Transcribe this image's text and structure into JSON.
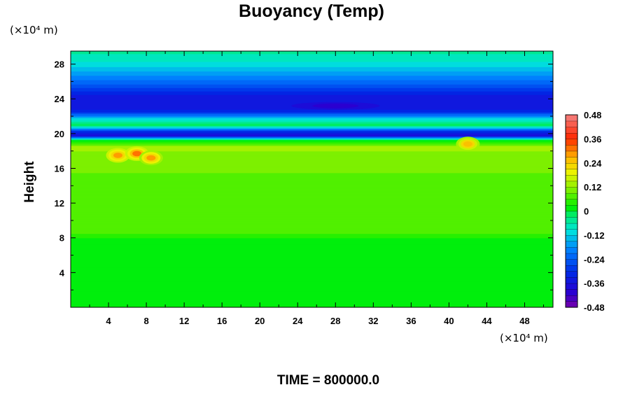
{
  "chart_data": {
    "type": "heatmap",
    "title": "Buoyancy (Temp)",
    "xlabel": "",
    "ylabel": "Height",
    "x_unit": "(×10⁴ m)",
    "y_unit": "(×10⁴ m)",
    "xlim": [
      0,
      51
    ],
    "ylim": [
      0,
      29.5
    ],
    "x_ticks": [
      4,
      8,
      12,
      16,
      20,
      24,
      28,
      32,
      36,
      40,
      44,
      48
    ],
    "y_ticks": [
      4,
      8,
      12,
      16,
      20,
      24,
      28
    ],
    "colorbar": {
      "min": -0.48,
      "max": 0.48,
      "labels": [
        "0.48",
        "0.36",
        "0.24",
        "0.12",
        "0",
        "-0.12",
        "-0.24",
        "-0.36",
        "-0.48"
      ],
      "label_values": [
        0.48,
        0.36,
        0.24,
        0.12,
        0,
        -0.12,
        -0.24,
        -0.36,
        -0.48
      ],
      "levels": 32
    },
    "profile_by_height": [
      {
        "z": 0,
        "v": 0.0
      },
      {
        "z": 7.5,
        "v": 0.0
      },
      {
        "z": 8.5,
        "v": 0.06
      },
      {
        "z": 11.0,
        "v": 0.07
      },
      {
        "z": 14.0,
        "v": 0.08
      },
      {
        "z": 17.0,
        "v": 0.1
      },
      {
        "z": 18.5,
        "v": 0.13
      },
      {
        "z": 19.3,
        "v": 0.0
      },
      {
        "z": 19.8,
        "v": -0.38
      },
      {
        "z": 20.3,
        "v": -0.3
      },
      {
        "z": 21.0,
        "v": 0.0
      },
      {
        "z": 21.7,
        "v": -0.1
      },
      {
        "z": 22.5,
        "v": -0.3
      },
      {
        "z": 23.2,
        "v": -0.36
      },
      {
        "z": 24.5,
        "v": -0.33
      },
      {
        "z": 26.0,
        "v": -0.22
      },
      {
        "z": 28.0,
        "v": -0.1
      },
      {
        "z": 29.5,
        "v": -0.05
      }
    ],
    "anomalies": [
      {
        "x": 5.0,
        "z": 17.5,
        "v": 0.27
      },
      {
        "x": 7.0,
        "z": 17.7,
        "v": 0.3
      },
      {
        "x": 8.5,
        "z": 17.2,
        "v": 0.28
      },
      {
        "x": 42.0,
        "z": 18.8,
        "v": 0.26
      },
      {
        "x": 28.0,
        "z": 23.2,
        "v": -0.4
      }
    ]
  },
  "footer": {
    "time_label": "TIME = 800000.0"
  }
}
